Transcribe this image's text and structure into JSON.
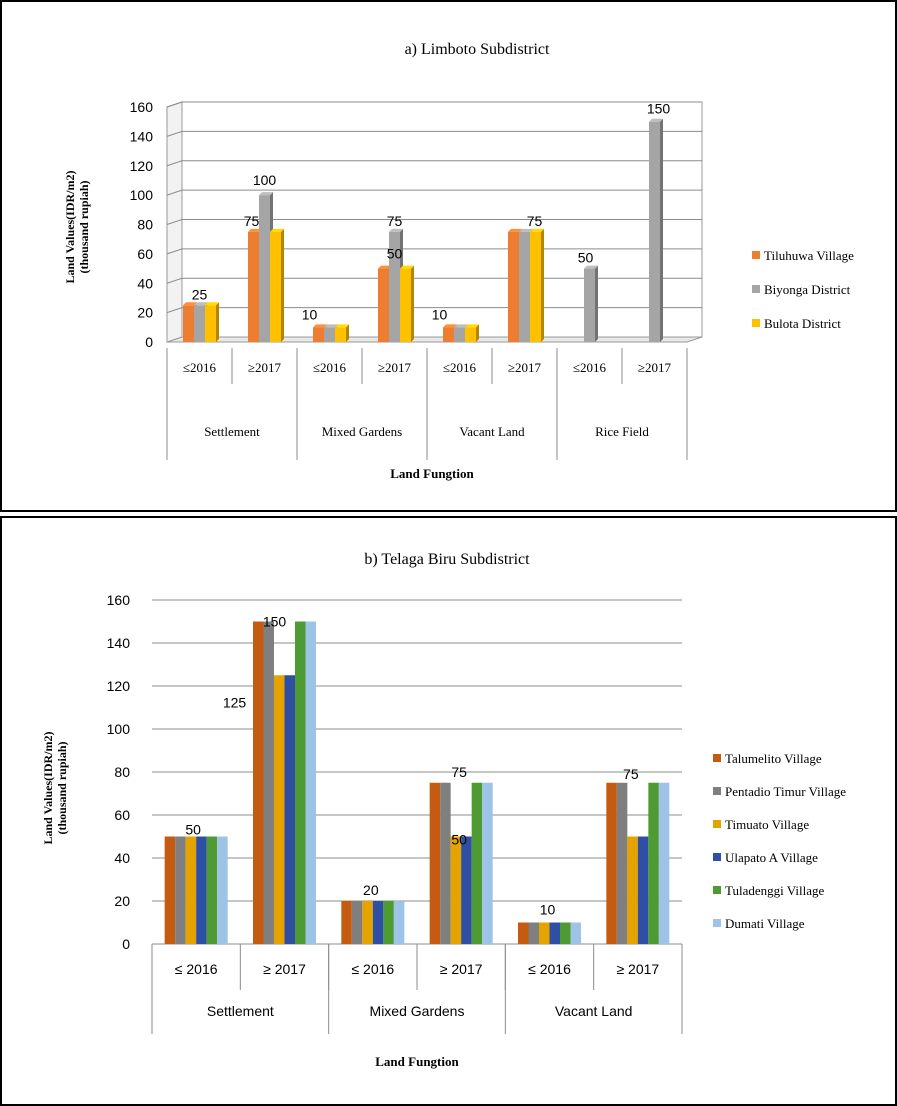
{
  "chart_data": [
    {
      "type": "bar",
      "title": "a) Limboto Subdistrict",
      "ylabel": [
        "Land Values(IDR/m2)",
        "(thousand rupiah)"
      ],
      "xlabel": "Land Fungtion",
      "ylim": [
        0,
        160
      ],
      "yticks": [
        0,
        20,
        40,
        60,
        80,
        100,
        120,
        140,
        160
      ],
      "categories": [
        "≤2016",
        "≥2017",
        "≤2016",
        "≥2017",
        "≤2016",
        "≥2017",
        "≤2016",
        "≥2017"
      ],
      "groups": [
        "Settlement",
        "Mixed Gardens",
        "Vacant Land",
        "Rice Field"
      ],
      "grid": true,
      "style": "3d",
      "legend_position": "right",
      "series": [
        {
          "name": "Tiluhuwa Village",
          "color": "#ed7d31",
          "values": [
            25,
            75,
            10,
            50,
            10,
            75,
            0,
            0
          ]
        },
        {
          "name": "Biyonga District",
          "color": "#a5a5a5",
          "values": [
            25,
            100,
            10,
            75,
            10,
            75,
            50,
            150
          ]
        },
        {
          "name": "Bulota District",
          "color": "#ffc000",
          "values": [
            25,
            75,
            10,
            50,
            10,
            75,
            0,
            0
          ]
        }
      ],
      "data_labels": [
        {
          "text": "25",
          "category": 0,
          "value": 25
        },
        {
          "text": "75",
          "category": 1,
          "value": 75
        },
        {
          "text": "100",
          "category": 1,
          "value": 100
        },
        {
          "text": "10",
          "category": 2,
          "value": 10
        },
        {
          "text": "50",
          "category": 3,
          "value": 50
        },
        {
          "text": "75",
          "category": 3,
          "value": 75
        },
        {
          "text": "10",
          "category": 4,
          "value": 10
        },
        {
          "text": "75",
          "category": 5,
          "value": 75
        },
        {
          "text": "50",
          "category": 6,
          "value": 50
        },
        {
          "text": "150",
          "category": 7,
          "value": 150
        }
      ]
    },
    {
      "type": "bar",
      "title": "b) Telaga Biru Subdistrict",
      "ylabel": [
        "Land Values(IDR/m2)",
        "(thousand rupiah)"
      ],
      "xlabel": "Land Fungtion",
      "ylim": [
        0,
        160
      ],
      "yticks": [
        0,
        20,
        40,
        60,
        80,
        100,
        120,
        140,
        160
      ],
      "categories": [
        "≤ 2016",
        "≥ 2017",
        "≤ 2016",
        "≥ 2017",
        "≤ 2016",
        "≥ 2017"
      ],
      "groups": [
        "Settlement",
        "Mixed Gardens",
        "Vacant Land"
      ],
      "grid": true,
      "legend_position": "right",
      "series": [
        {
          "name": "Talumelito Village",
          "color": "#c55a11",
          "values": [
            50,
            150,
            20,
            75,
            10,
            75
          ]
        },
        {
          "name": "Pentadio Timur Village",
          "color": "#7f7f7f",
          "values": [
            50,
            150,
            20,
            75,
            10,
            75
          ]
        },
        {
          "name": "Timuato Village",
          "color": "#e5a300",
          "values": [
            50,
            125,
            20,
            50,
            10,
            50
          ]
        },
        {
          "name": "Ulapato A Village",
          "color": "#2e4fa3",
          "values": [
            50,
            125,
            20,
            50,
            10,
            50
          ]
        },
        {
          "name": "Tuladenggi Village",
          "color": "#4e9a33",
          "values": [
            50,
            150,
            20,
            75,
            10,
            75
          ]
        },
        {
          "name": "Dumati Village",
          "color": "#9dc3e6",
          "values": [
            50,
            150,
            20,
            75,
            10,
            75
          ]
        }
      ],
      "data_labels": [
        {
          "text": "50",
          "category": 0,
          "value": 50
        },
        {
          "text": "150",
          "category": 1,
          "value": 150
        },
        {
          "text": "125",
          "category": 1,
          "value": 125
        },
        {
          "text": "20",
          "category": 2,
          "value": 20
        },
        {
          "text": "75",
          "category": 3,
          "value": 75
        },
        {
          "text": "50",
          "category": 3,
          "value": 50
        },
        {
          "text": "10",
          "category": 4,
          "value": 10
        },
        {
          "text": "75",
          "category": 5,
          "value": 75
        }
      ]
    }
  ]
}
